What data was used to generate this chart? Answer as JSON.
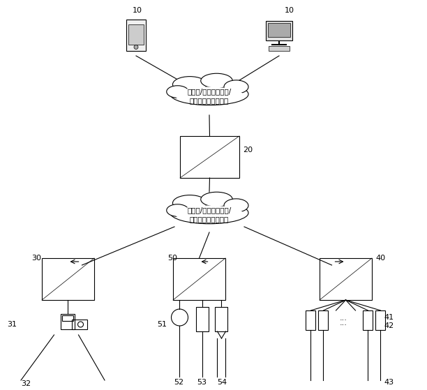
{
  "bg_color": "#ffffff",
  "line_color": "#000000",
  "box_color": "#ffffff",
  "cloud_color": "#ffffff",
  "font_size": 8,
  "font_family": "SimSun",
  "cloud1_text": "互联网/移动通信网络/\n自组织无线通信网络",
  "cloud2_text": "互联网/移动通信网络/\n自组织无线通信网络",
  "label_10a": "10",
  "label_10b": "10",
  "label_20": "20",
  "label_30": "30",
  "label_31": "31",
  "label_32": "32",
  "label_40": "40",
  "label_41": "41",
  "label_42": "42",
  "label_43": "43",
  "label_50": "50",
  "label_51": "51",
  "label_52": "52",
  "label_53": "53",
  "label_54": "54"
}
